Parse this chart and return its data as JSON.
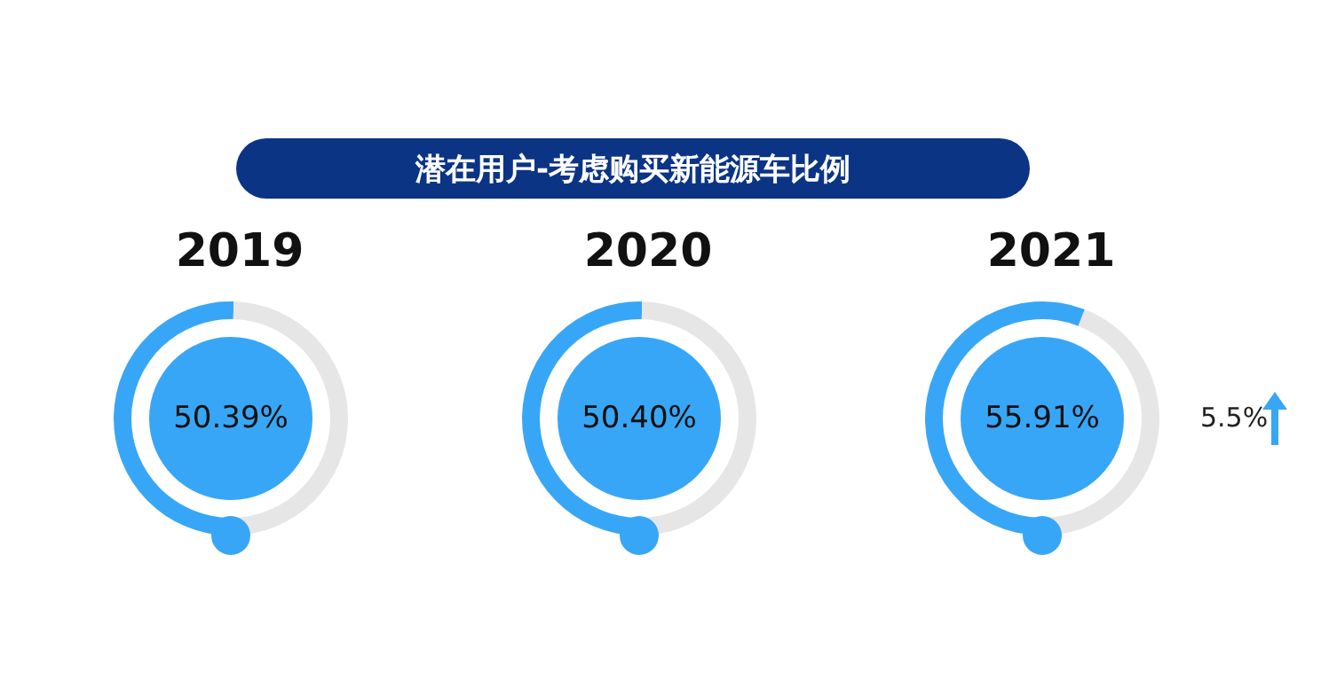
{
  "chart_data": [
    {
      "type": "other",
      "title": "潜在用户-考虑购买新能源车比例",
      "color": "#0b3485"
    },
    {
      "type": "donut",
      "title": "2019",
      "categories": [
        null,
        null
      ],
      "values": [
        50.39,
        49.61
      ],
      "colors": [
        "#38a6f6",
        "#e6e6e6"
      ],
      "value_labels": [
        "50.39%",
        null
      ]
    },
    {
      "type": "donut",
      "title": "2020",
      "categories": [
        null,
        null
      ],
      "values": [
        50.4,
        49.6
      ],
      "colors": [
        "#38a6f6",
        "#e6e6e6"
      ],
      "value_labels": [
        "50.40%",
        null
      ]
    },
    {
      "type": "donut",
      "title": "2021",
      "categories": [
        null,
        null
      ],
      "values": [
        55.91,
        44.09
      ],
      "colors": [
        "#38a6f6",
        "#e6e6e6"
      ],
      "value_labels": [
        "55.91%",
        null
      ],
      "annotations": [
        "5.5%"
      ]
    }
  ]
}
